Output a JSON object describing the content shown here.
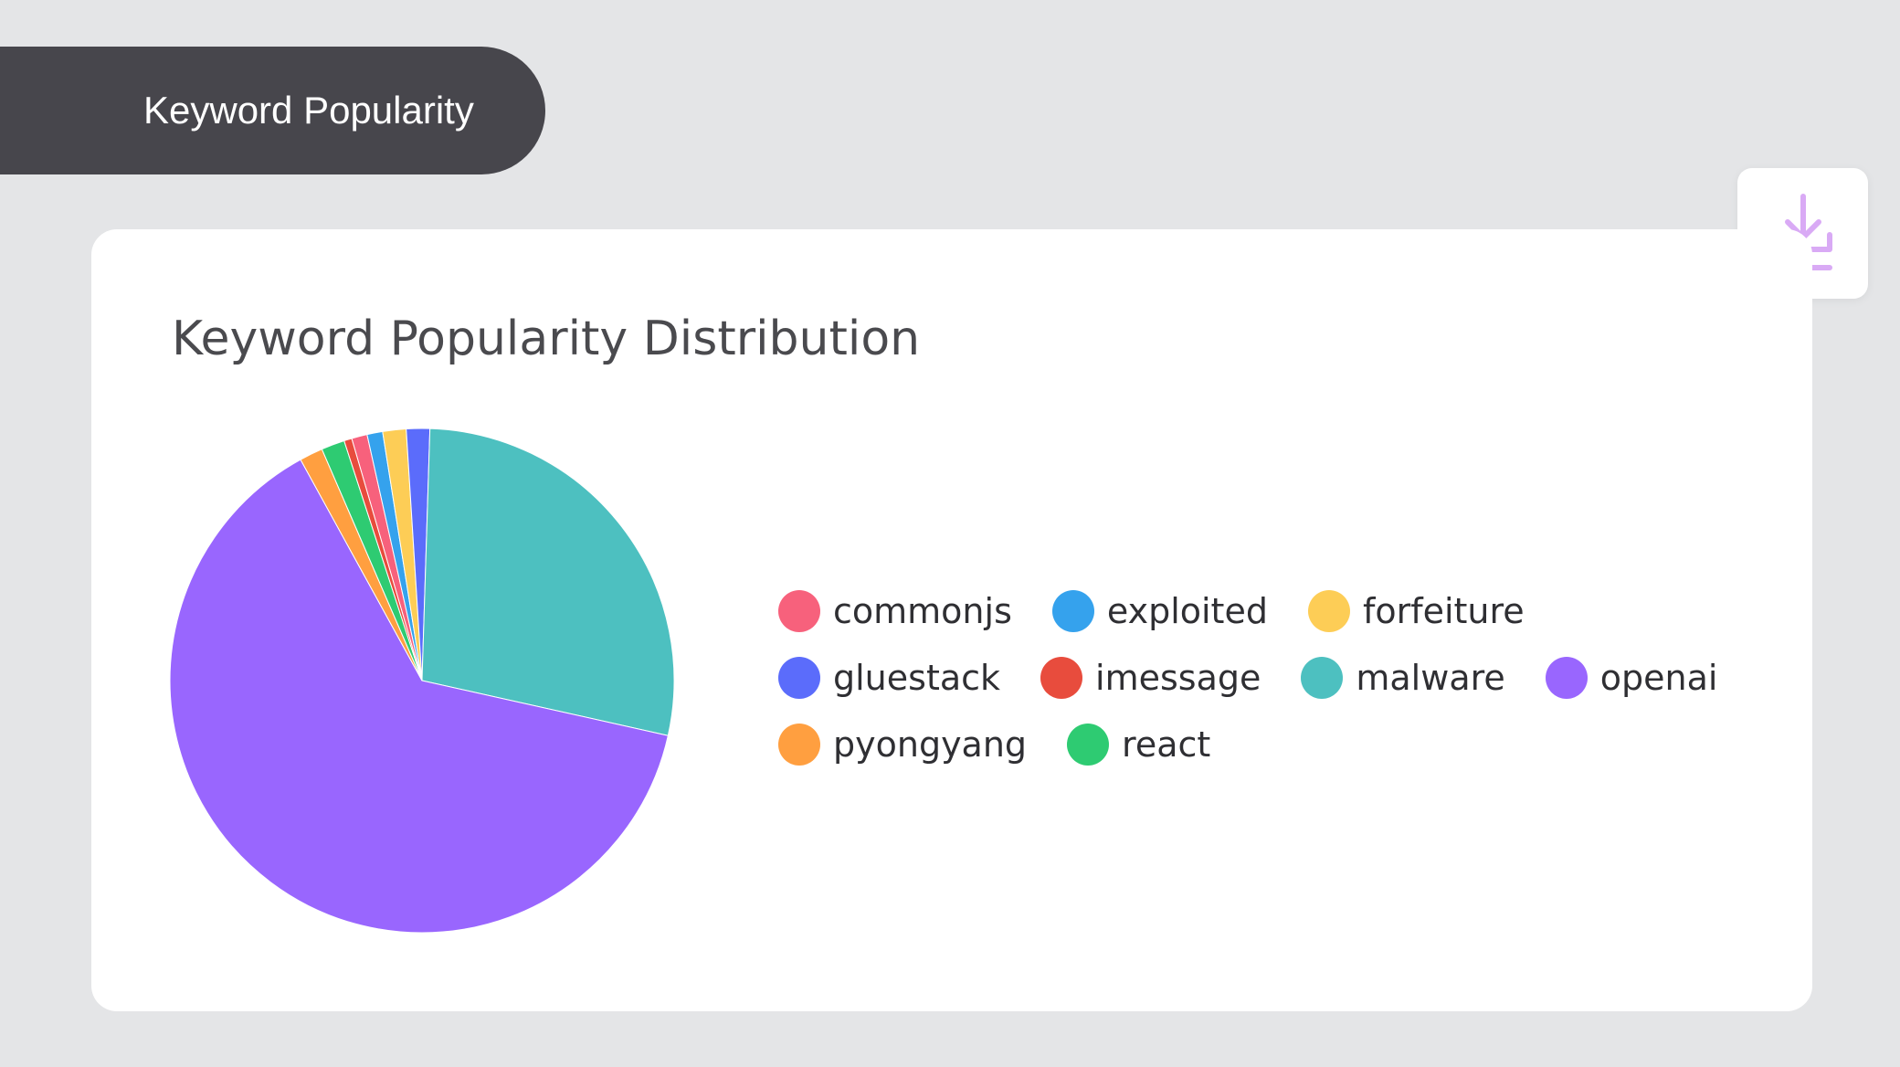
{
  "header": {
    "title": "Keyword Popularity"
  },
  "toolbar": {
    "download_icon": "download-icon"
  },
  "colors": {
    "background": "#e4e5e7",
    "header_bg": "#47464c",
    "icon_accent": "#d9aaf5"
  },
  "chart_data": {
    "type": "pie",
    "title": "Keyword Popularity Distribution",
    "legend_placement": "right",
    "slices": [
      {
        "label": "commonjs",
        "value": 1,
        "color": "#f7617c"
      },
      {
        "label": "exploited",
        "value": 1,
        "color": "#35a2ed"
      },
      {
        "label": "forfeiture",
        "value": 1.5,
        "color": "#fdcd56"
      },
      {
        "label": "gluestack",
        "value": 1.5,
        "color": "#5b6cfb"
      },
      {
        "label": "malware",
        "value": 28,
        "color": "#4dc0c0"
      },
      {
        "label": "openai",
        "value": 63.5,
        "color": "#9966fe"
      },
      {
        "label": "pyongyang",
        "value": 1.5,
        "color": "#ff9f40"
      },
      {
        "label": "react",
        "value": 1.5,
        "color": "#2ecb72"
      },
      {
        "label": "imessage",
        "value": 0.5,
        "color": "#e84c3d"
      }
    ],
    "legend": [
      {
        "label": "commonjs",
        "color": "#f7617c"
      },
      {
        "label": "exploited",
        "color": "#35a2ed"
      },
      {
        "label": "forfeiture",
        "color": "#fdcd56"
      },
      {
        "label": "gluestack",
        "color": "#5b6cfb"
      },
      {
        "label": "imessage",
        "color": "#e84c3d"
      },
      {
        "label": "malware",
        "color": "#4dc0c0"
      },
      {
        "label": "openai",
        "color": "#9966fe"
      },
      {
        "label": "pyongyang",
        "color": "#ff9f40"
      },
      {
        "label": "react",
        "color": "#2ecb72"
      }
    ]
  }
}
